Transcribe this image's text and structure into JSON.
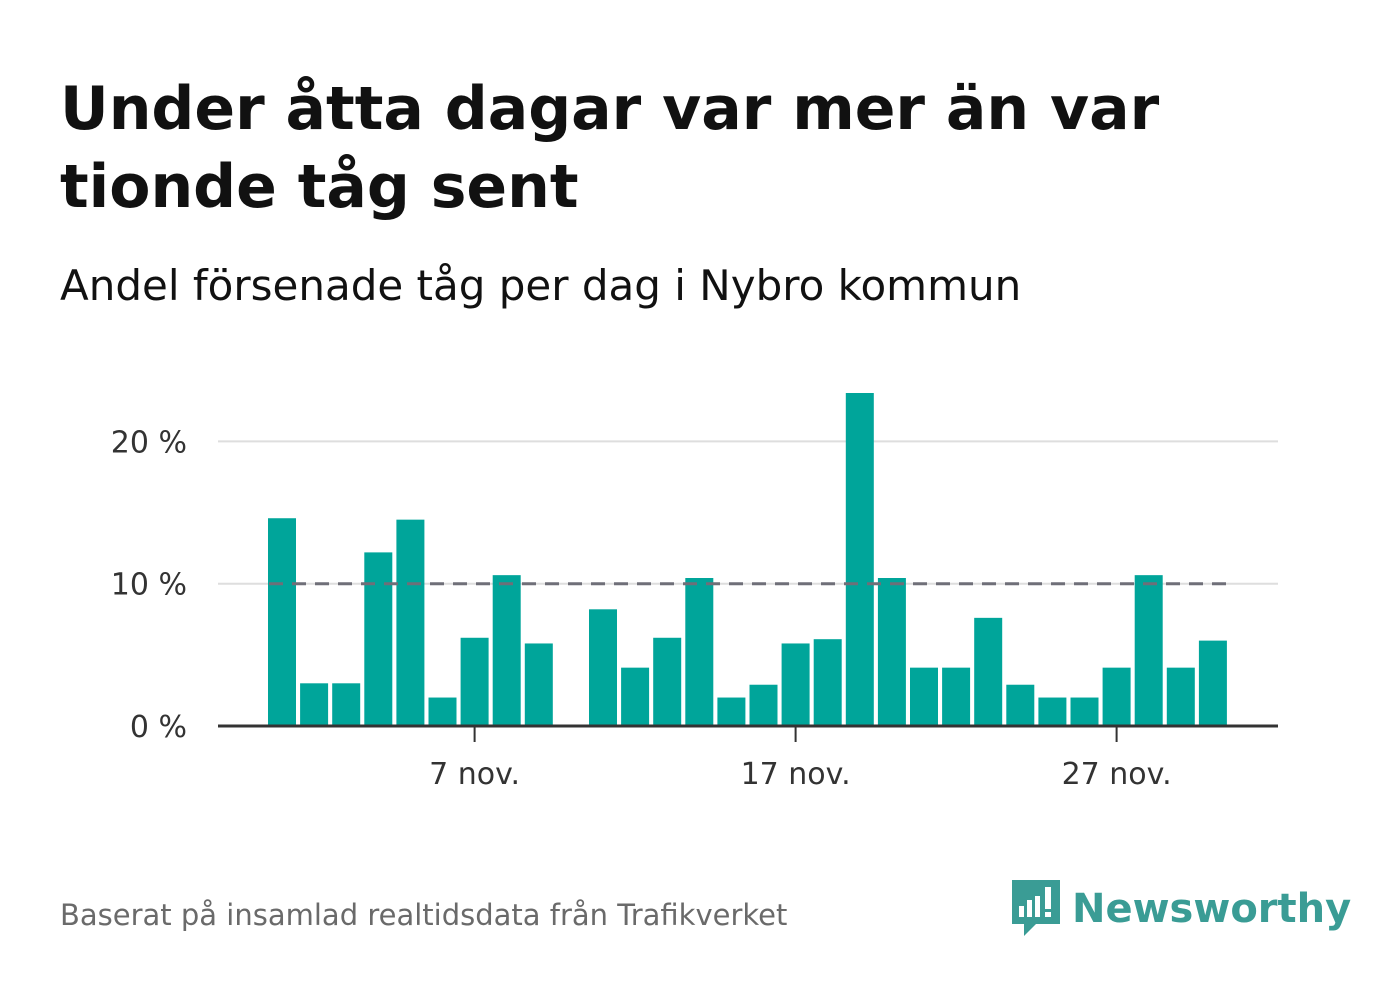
{
  "header": {
    "title": "Under åtta dagar var mer än var tionde tåg sent",
    "subtitle": "Andel försenade tåg per dag i Nybro kommun"
  },
  "footer": {
    "source": "Baserat på insamlad realtidsdata från Trafikverket",
    "brand": "Newsworthy"
  },
  "colors": {
    "bar": "#00a59a",
    "threshold": "#6f6f78",
    "grid": "#dedede",
    "axis": "#333333",
    "brand": "#3a9c95"
  },
  "chart_data": {
    "type": "bar",
    "x": [
      1,
      2,
      3,
      4,
      5,
      6,
      7,
      8,
      9,
      10,
      11,
      12,
      13,
      14,
      15,
      16,
      17,
      18,
      19,
      20,
      21,
      22,
      23,
      24,
      25,
      26,
      27,
      28,
      29,
      30
    ],
    "values": [
      14.6,
      3.0,
      3.0,
      12.2,
      14.5,
      2.0,
      6.2,
      10.6,
      5.8,
      null,
      8.2,
      4.1,
      6.2,
      10.4,
      2.0,
      2.9,
      5.8,
      6.1,
      23.4,
      10.4,
      4.1,
      4.1,
      7.6,
      2.9,
      2.0,
      2.0,
      4.1,
      10.6,
      4.1,
      6.0
    ],
    "x_ticks": [
      {
        "day": 7,
        "label": "7 nov."
      },
      {
        "day": 17,
        "label": "17 nov."
      },
      {
        "day": 27,
        "label": "27 nov."
      }
    ],
    "y_ticks": [
      {
        "value": 0,
        "label": "0 %"
      },
      {
        "value": 10,
        "label": "10 %"
      },
      {
        "value": 20,
        "label": "20 %"
      }
    ],
    "ylim": [
      0,
      23.4
    ],
    "threshold": 10,
    "grid": true,
    "legend": "none"
  }
}
